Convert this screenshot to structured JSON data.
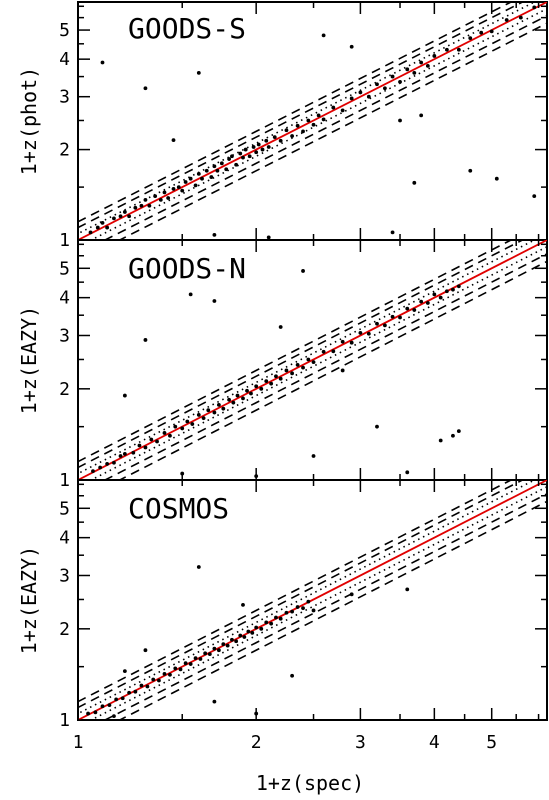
{
  "colors": {
    "relation_line": "#e00000",
    "points": "#000000",
    "guides": "#000000"
  },
  "chart_data": [
    {
      "type": "scatter",
      "title": "GOODS-S",
      "xlabel": "",
      "ylabel": "1+z(phot)",
      "log_x": true,
      "log_y": true,
      "xlim": [
        1,
        6.2
      ],
      "ylim": [
        1,
        6.2
      ],
      "x_ticks": [
        1,
        2,
        3,
        4,
        5
      ],
      "y_ticks": [
        1,
        2,
        3,
        4,
        5
      ],
      "guide_lines": {
        "solid_red": 0,
        "dotted": 0.05,
        "dashed": [
          0.1,
          0.15
        ]
      },
      "points": [
        [
          1.05,
          1.06
        ],
        [
          1.08,
          1.1
        ],
        [
          1.1,
          1.14
        ],
        [
          1.12,
          1.1
        ],
        [
          1.15,
          1.18
        ],
        [
          1.18,
          1.2
        ],
        [
          1.2,
          1.24
        ],
        [
          1.22,
          1.2
        ],
        [
          1.25,
          1.28
        ],
        [
          1.28,
          1.3
        ],
        [
          1.3,
          1.36
        ],
        [
          1.32,
          1.3
        ],
        [
          1.35,
          1.4
        ],
        [
          1.38,
          1.36
        ],
        [
          1.4,
          1.44
        ],
        [
          1.42,
          1.38
        ],
        [
          1.45,
          1.48
        ],
        [
          1.48,
          1.5
        ],
        [
          1.5,
          1.46
        ],
        [
          1.52,
          1.56
        ],
        [
          1.55,
          1.6
        ],
        [
          1.58,
          1.52
        ],
        [
          1.6,
          1.66
        ],
        [
          1.62,
          1.6
        ],
        [
          1.65,
          1.7
        ],
        [
          1.68,
          1.62
        ],
        [
          1.7,
          1.76
        ],
        [
          1.72,
          1.7
        ],
        [
          1.75,
          1.8
        ],
        [
          1.78,
          1.72
        ],
        [
          1.8,
          1.86
        ],
        [
          1.82,
          1.9
        ],
        [
          1.85,
          1.78
        ],
        [
          1.88,
          1.94
        ],
        [
          1.9,
          1.88
        ],
        [
          1.92,
          2.0
        ],
        [
          1.95,
          1.9
        ],
        [
          1.98,
          2.04
        ],
        [
          2.0,
          1.96
        ],
        [
          2.02,
          2.08
        ],
        [
          2.05,
          2.0
        ],
        [
          2.08,
          2.14
        ],
        [
          2.1,
          2.04
        ],
        [
          2.15,
          2.2
        ],
        [
          2.2,
          2.14
        ],
        [
          2.25,
          2.32
        ],
        [
          2.3,
          2.22
        ],
        [
          2.35,
          2.4
        ],
        [
          2.4,
          2.3
        ],
        [
          2.45,
          2.5
        ],
        [
          2.5,
          2.42
        ],
        [
          2.55,
          2.6
        ],
        [
          2.6,
          2.52
        ],
        [
          2.7,
          2.76
        ],
        [
          2.8,
          2.7
        ],
        [
          2.9,
          2.96
        ],
        [
          3.0,
          3.1
        ],
        [
          3.1,
          3.0
        ],
        [
          3.2,
          3.3
        ],
        [
          3.3,
          3.2
        ],
        [
          3.4,
          3.5
        ],
        [
          3.5,
          3.36
        ],
        [
          3.6,
          3.7
        ],
        [
          3.7,
          3.6
        ],
        [
          3.8,
          3.9
        ],
        [
          3.9,
          3.8
        ],
        [
          4.0,
          4.1
        ],
        [
          4.2,
          4.3
        ],
        [
          4.4,
          4.3
        ],
        [
          4.6,
          4.7
        ],
        [
          4.8,
          4.9
        ],
        [
          5.0,
          4.95
        ],
        [
          5.3,
          5.4
        ],
        [
          5.6,
          5.5
        ],
        [
          5.9,
          5.95
        ],
        [
          1.1,
          3.9
        ],
        [
          1.6,
          3.6
        ],
        [
          2.6,
          4.8
        ],
        [
          3.8,
          2.6
        ],
        [
          4.6,
          1.7
        ],
        [
          5.1,
          1.6
        ],
        [
          3.7,
          1.55
        ],
        [
          5.9,
          1.4
        ],
        [
          1.3,
          3.2
        ],
        [
          2.1,
          1.02
        ],
        [
          1.7,
          1.04
        ],
        [
          3.4,
          1.06
        ],
        [
          2.9,
          4.4
        ],
        [
          3.5,
          2.5
        ],
        [
          1.45,
          2.15
        ]
      ]
    },
    {
      "type": "scatter",
      "title": "GOODS-N",
      "xlabel": "",
      "ylabel": "1+z(EAZY)",
      "log_x": true,
      "log_y": true,
      "xlim": [
        1,
        6.2
      ],
      "ylim": [
        1,
        6.2
      ],
      "x_ticks": [
        1,
        2,
        3,
        4,
        5
      ],
      "y_ticks": [
        1,
        2,
        3,
        4,
        5
      ],
      "guide_lines": {
        "solid_red": 0,
        "dotted": 0.05,
        "dashed": [
          0.1,
          0.15
        ]
      },
      "points": [
        [
          1.06,
          1.07
        ],
        [
          1.09,
          1.1
        ],
        [
          1.12,
          1.13
        ],
        [
          1.15,
          1.14
        ],
        [
          1.18,
          1.2
        ],
        [
          1.2,
          1.22
        ],
        [
          1.24,
          1.23
        ],
        [
          1.27,
          1.3
        ],
        [
          1.3,
          1.28
        ],
        [
          1.33,
          1.36
        ],
        [
          1.36,
          1.34
        ],
        [
          1.4,
          1.43
        ],
        [
          1.43,
          1.4
        ],
        [
          1.46,
          1.5
        ],
        [
          1.5,
          1.48
        ],
        [
          1.53,
          1.56
        ],
        [
          1.56,
          1.53
        ],
        [
          1.6,
          1.64
        ],
        [
          1.63,
          1.6
        ],
        [
          1.66,
          1.7
        ],
        [
          1.7,
          1.67
        ],
        [
          1.73,
          1.77
        ],
        [
          1.76,
          1.72
        ],
        [
          1.8,
          1.84
        ],
        [
          1.83,
          1.8
        ],
        [
          1.86,
          1.9
        ],
        [
          1.9,
          1.86
        ],
        [
          1.93,
          1.97
        ],
        [
          1.96,
          1.93
        ],
        [
          2.0,
          2.04
        ],
        [
          2.04,
          2.0
        ],
        [
          2.08,
          2.12
        ],
        [
          2.12,
          2.08
        ],
        [
          2.16,
          2.2
        ],
        [
          2.2,
          2.16
        ],
        [
          2.25,
          2.3
        ],
        [
          2.3,
          2.25
        ],
        [
          2.35,
          2.4
        ],
        [
          2.4,
          2.35
        ],
        [
          2.45,
          2.5
        ],
        [
          2.5,
          2.45
        ],
        [
          2.6,
          2.65
        ],
        [
          2.7,
          2.66
        ],
        [
          2.8,
          2.86
        ],
        [
          2.9,
          2.84
        ],
        [
          3.0,
          3.06
        ],
        [
          3.1,
          3.04
        ],
        [
          3.2,
          3.28
        ],
        [
          3.3,
          3.24
        ],
        [
          3.4,
          3.46
        ],
        [
          3.5,
          3.44
        ],
        [
          3.6,
          3.68
        ],
        [
          3.7,
          3.64
        ],
        [
          3.8,
          3.88
        ],
        [
          3.9,
          3.84
        ],
        [
          4.0,
          4.1
        ],
        [
          4.1,
          4.0
        ],
        [
          4.2,
          4.2
        ],
        [
          4.3,
          4.25
        ],
        [
          4.4,
          4.36
        ],
        [
          1.55,
          4.1
        ],
        [
          1.7,
          3.9
        ],
        [
          2.4,
          4.9
        ],
        [
          2.8,
          2.3
        ],
        [
          3.2,
          1.5
        ],
        [
          4.1,
          1.35
        ],
        [
          4.3,
          1.4
        ],
        [
          2.5,
          1.2
        ],
        [
          1.3,
          2.9
        ],
        [
          1.5,
          1.05
        ],
        [
          2.0,
          1.03
        ],
        [
          3.6,
          1.06
        ],
        [
          4.4,
          1.45
        ],
        [
          1.2,
          1.9
        ],
        [
          2.2,
          3.2
        ]
      ]
    },
    {
      "type": "scatter",
      "title": "COSMOS",
      "xlabel": "1+z(spec)",
      "ylabel": "1+z(EAZY)",
      "log_x": true,
      "log_y": true,
      "xlim": [
        1,
        6.2
      ],
      "ylim": [
        1,
        6.2
      ],
      "x_ticks": [
        1,
        2,
        3,
        4,
        5
      ],
      "y_ticks": [
        1,
        2,
        3,
        4,
        5
      ],
      "guide_lines": {
        "solid_red": 0,
        "dotted": 0.05,
        "dashed": [
          0.1,
          0.15
        ]
      },
      "points": [
        [
          1.04,
          1.05
        ],
        [
          1.07,
          1.06
        ],
        [
          1.1,
          1.11
        ],
        [
          1.13,
          1.12
        ],
        [
          1.16,
          1.17
        ],
        [
          1.19,
          1.18
        ],
        [
          1.22,
          1.23
        ],
        [
          1.25,
          1.24
        ],
        [
          1.28,
          1.3
        ],
        [
          1.31,
          1.29
        ],
        [
          1.34,
          1.36
        ],
        [
          1.37,
          1.35
        ],
        [
          1.4,
          1.42
        ],
        [
          1.43,
          1.41
        ],
        [
          1.46,
          1.48
        ],
        [
          1.49,
          1.47
        ],
        [
          1.52,
          1.54
        ],
        [
          1.55,
          1.53
        ],
        [
          1.58,
          1.6
        ],
        [
          1.61,
          1.59
        ],
        [
          1.64,
          1.66
        ],
        [
          1.67,
          1.65
        ],
        [
          1.7,
          1.72
        ],
        [
          1.73,
          1.7
        ],
        [
          1.76,
          1.78
        ],
        [
          1.79,
          1.76
        ],
        [
          1.82,
          1.84
        ],
        [
          1.85,
          1.82
        ],
        [
          1.88,
          1.9
        ],
        [
          1.91,
          1.88
        ],
        [
          1.94,
          1.96
        ],
        [
          1.97,
          1.94
        ],
        [
          2.0,
          2.02
        ],
        [
          2.04,
          2.0
        ],
        [
          2.08,
          2.1
        ],
        [
          2.12,
          2.08
        ],
        [
          2.16,
          2.18
        ],
        [
          2.2,
          2.16
        ],
        [
          2.25,
          2.26
        ],
        [
          2.3,
          2.28
        ],
        [
          2.35,
          2.36
        ],
        [
          2.4,
          2.34
        ],
        [
          2.45,
          2.46
        ],
        [
          2.5,
          2.3
        ],
        [
          1.6,
          3.2
        ],
        [
          1.9,
          2.4
        ],
        [
          2.3,
          1.4
        ],
        [
          1.7,
          1.15
        ],
        [
          1.3,
          1.7
        ],
        [
          3.6,
          2.7
        ],
        [
          2.9,
          2.6
        ],
        [
          1.2,
          1.45
        ],
        [
          2.0,
          1.05
        ],
        [
          1.15,
          1.03
        ]
      ]
    }
  ]
}
